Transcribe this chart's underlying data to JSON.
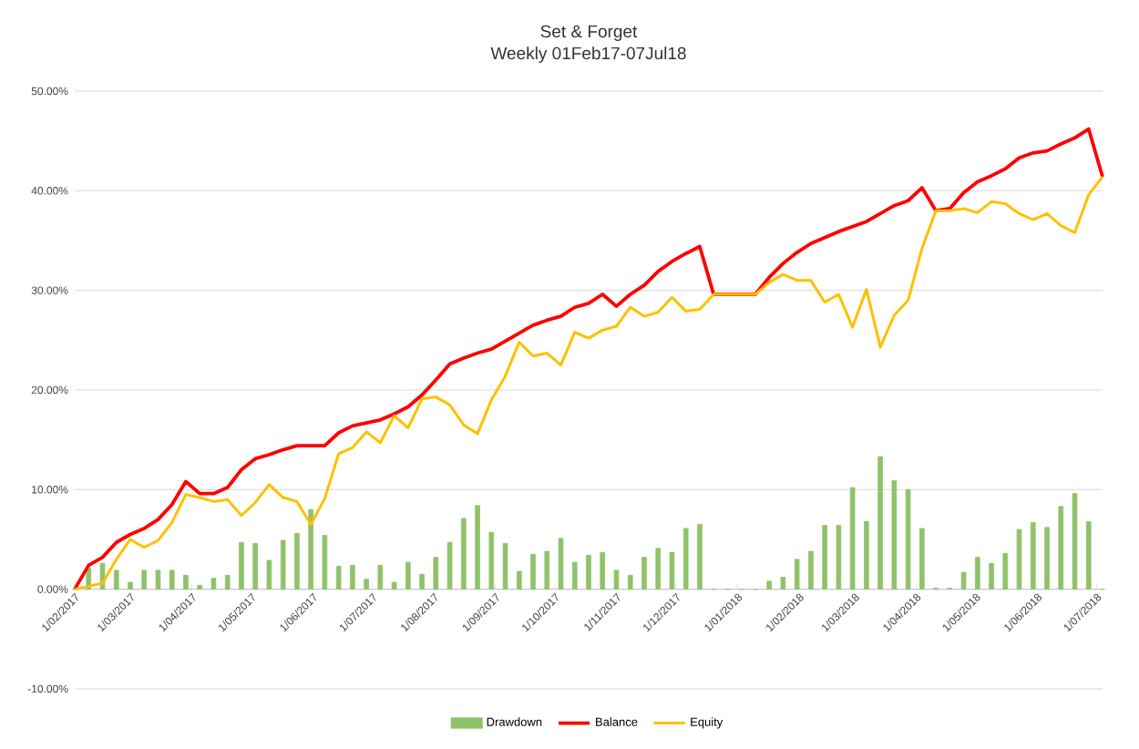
{
  "chart_data": {
    "type": "line",
    "title": "Set & Forget",
    "subtitle": "Weekly 01Feb17-07Jul18",
    "x": [
      "2017-02-01",
      "2017-02-08",
      "2017-02-15",
      "2017-02-22",
      "2017-03-01",
      "2017-03-08",
      "2017-03-15",
      "2017-03-22",
      "2017-03-29",
      "2017-04-05",
      "2017-04-12",
      "2017-04-19",
      "2017-04-26",
      "2017-05-03",
      "2017-05-10",
      "2017-05-17",
      "2017-05-24",
      "2017-05-31",
      "2017-06-07",
      "2017-06-14",
      "2017-06-21",
      "2017-06-28",
      "2017-07-05",
      "2017-07-12",
      "2017-07-19",
      "2017-07-26",
      "2017-08-02",
      "2017-08-09",
      "2017-08-16",
      "2017-08-23",
      "2017-08-30",
      "2017-09-06",
      "2017-09-13",
      "2017-09-20",
      "2017-09-27",
      "2017-10-04",
      "2017-10-11",
      "2017-10-18",
      "2017-10-25",
      "2017-11-01",
      "2017-11-08",
      "2017-11-15",
      "2017-11-22",
      "2017-11-29",
      "2017-12-06",
      "2017-12-13",
      "2017-12-20",
      "2017-12-27",
      "2018-01-03",
      "2018-01-10",
      "2018-01-17",
      "2018-01-24",
      "2018-01-31",
      "2018-02-07",
      "2018-02-14",
      "2018-02-21",
      "2018-02-28",
      "2018-03-07",
      "2018-03-14",
      "2018-03-21",
      "2018-03-28",
      "2018-04-04",
      "2018-04-11",
      "2018-04-18",
      "2018-04-25",
      "2018-05-02",
      "2018-05-09",
      "2018-05-16",
      "2018-05-23",
      "2018-05-30",
      "2018-06-06",
      "2018-06-13",
      "2018-06-20",
      "2018-06-27",
      "2018-07-04"
    ],
    "series": [
      {
        "name": "Drawdown",
        "type": "bar",
        "color": "#8fc26a",
        "values": [
          0,
          2.1,
          2.6,
          1.9,
          0.7,
          1.9,
          1.9,
          1.9,
          1.4,
          0.4,
          1.1,
          1.4,
          4.7,
          4.6,
          2.9,
          4.9,
          5.6,
          8.0,
          5.4,
          2.3,
          2.4,
          1.0,
          2.4,
          0.7,
          2.7,
          1.5,
          3.2,
          4.7,
          7.1,
          8.4,
          5.7,
          4.6,
          1.8,
          3.5,
          3.8,
          5.1,
          2.7,
          3.4,
          3.7,
          1.9,
          1.4,
          3.2,
          4.1,
          3.7,
          6.1,
          6.5,
          0,
          0,
          0,
          0,
          0.8,
          1.2,
          3.0,
          3.8,
          6.4,
          6.4,
          10.2,
          6.8,
          13.3,
          10.9,
          10.0,
          6.1,
          0.1,
          0.1,
          1.7,
          3.2,
          2.6,
          3.6,
          6.0,
          6.7,
          6.2,
          8.3,
          9.6,
          6.8,
          0
        ]
      },
      {
        "name": "Balance",
        "color": "#ff0000",
        "values": [
          0,
          2.4,
          3.2,
          4.7,
          5.5,
          6.1,
          7.0,
          8.5,
          10.8,
          9.6,
          9.6,
          10.2,
          12.0,
          13.1,
          13.5,
          14.0,
          14.4,
          14.4,
          14.4,
          15.7,
          16.4,
          16.7,
          17.0,
          17.6,
          18.3,
          19.5,
          21.0,
          22.6,
          23.2,
          23.7,
          24.1,
          24.9,
          25.7,
          26.5,
          27.0,
          27.4,
          28.3,
          28.7,
          29.6,
          28.4,
          29.6,
          30.5,
          31.9,
          32.9,
          33.7,
          34.4,
          29.6,
          29.6,
          29.6,
          29.6,
          31.3,
          32.7,
          33.8,
          34.7,
          35.3,
          35.9,
          36.4,
          36.9,
          37.7,
          38.5,
          39.0,
          40.3,
          38.0,
          38.2,
          39.8,
          40.9,
          41.5,
          42.2,
          43.3,
          43.8,
          44.0,
          44.7,
          45.3,
          46.2,
          41.4
        ]
      },
      {
        "name": "Equity",
        "color": "#ffc000",
        "values": [
          0,
          0.3,
          0.6,
          3.0,
          5.0,
          4.2,
          4.9,
          6.7,
          9.5,
          9.2,
          8.8,
          9.0,
          7.4,
          8.7,
          10.5,
          9.2,
          8.8,
          6.5,
          9.1,
          13.6,
          14.2,
          15.8,
          14.7,
          17.4,
          16.2,
          19.1,
          19.3,
          18.5,
          16.5,
          15.6,
          19.0,
          21.4,
          24.8,
          23.4,
          23.7,
          22.5,
          25.8,
          25.2,
          26.0,
          26.4,
          28.3,
          27.4,
          27.8,
          29.3,
          27.9,
          28.1,
          29.6,
          29.6,
          29.6,
          29.6,
          30.8,
          31.6,
          31.0,
          31.0,
          28.8,
          29.6,
          26.3,
          30.1,
          24.3,
          27.5,
          29.0,
          34.2,
          38.0,
          38.0,
          38.2,
          37.8,
          38.9,
          38.7,
          37.7,
          37.1,
          37.7,
          36.5,
          35.8,
          39.6,
          41.4
        ]
      }
    ],
    "xlim": [
      "2017-02-01",
      "2018-07-04"
    ],
    "xticks": [
      {
        "value": "2017-02-01",
        "label": "1/02/2017"
      },
      {
        "value": "2017-03-01",
        "label": "1/03/2017"
      },
      {
        "value": "2017-04-01",
        "label": "1/04/2017"
      },
      {
        "value": "2017-05-01",
        "label": "1/05/2017"
      },
      {
        "value": "2017-06-01",
        "label": "1/06/2017"
      },
      {
        "value": "2017-07-01",
        "label": "1/07/2017"
      },
      {
        "value": "2017-08-01",
        "label": "1/08/2017"
      },
      {
        "value": "2017-09-01",
        "label": "1/09/2017"
      },
      {
        "value": "2017-10-01",
        "label": "1/10/2017"
      },
      {
        "value": "2017-11-01",
        "label": "1/11/2017"
      },
      {
        "value": "2017-12-01",
        "label": "1/12/2017"
      },
      {
        "value": "2018-01-01",
        "label": "1/01/2018"
      },
      {
        "value": "2018-02-01",
        "label": "1/02/2018"
      },
      {
        "value": "2018-03-01",
        "label": "1/03/2018"
      },
      {
        "value": "2018-04-01",
        "label": "1/04/2018"
      },
      {
        "value": "2018-05-01",
        "label": "1/05/2018"
      },
      {
        "value": "2018-06-01",
        "label": "1/06/2018"
      },
      {
        "value": "2018-07-01",
        "label": "1/07/2018"
      }
    ],
    "ylim": [
      -10,
      50
    ],
    "yticks": [
      {
        "value": -10,
        "label": "-10.00%"
      },
      {
        "value": 0,
        "label": "0.00%"
      },
      {
        "value": 10,
        "label": "10.00%"
      },
      {
        "value": 20,
        "label": "20.00%"
      },
      {
        "value": 30,
        "label": "30.00%"
      },
      {
        "value": 40,
        "label": "40.00%"
      },
      {
        "value": 50,
        "label": "50.00%"
      }
    ],
    "grid": "y",
    "legend": "bottom",
    "marker": "none",
    "line_style": "solid"
  }
}
